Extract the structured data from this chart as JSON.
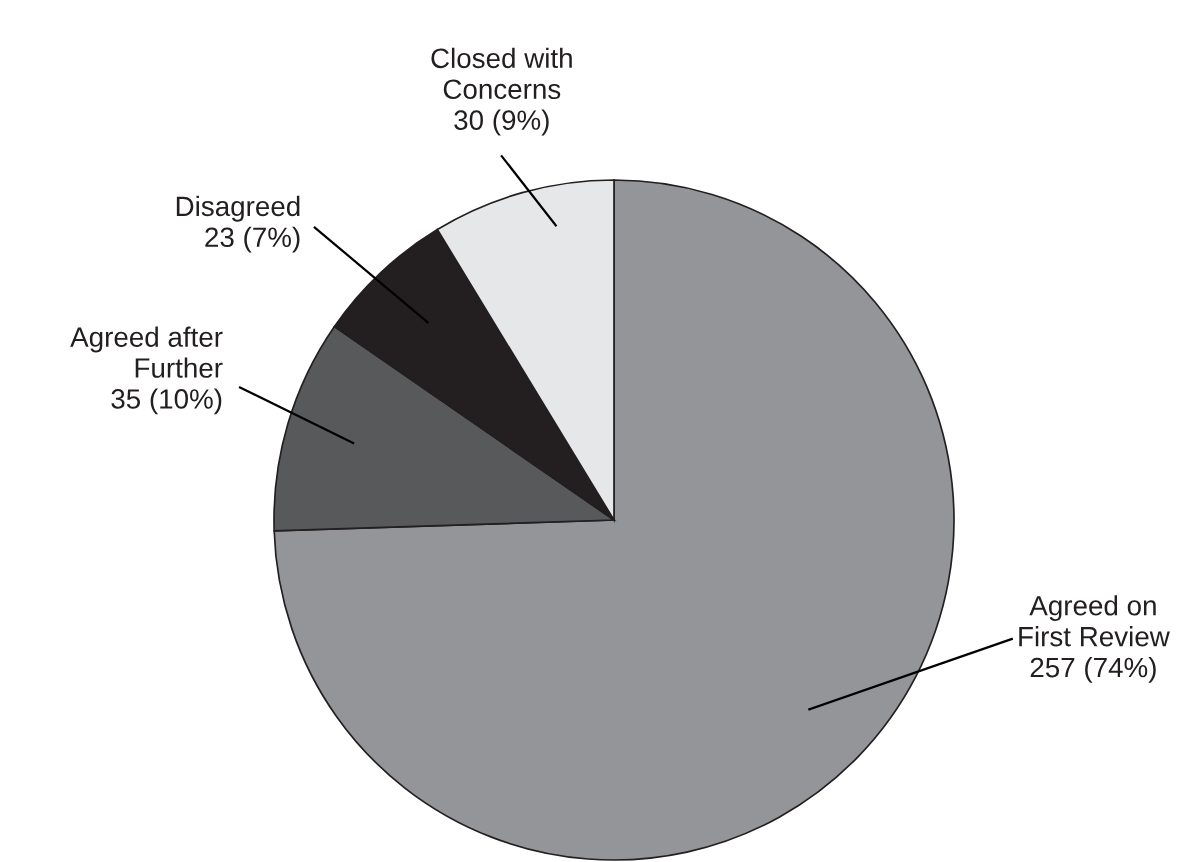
{
  "chart_data": {
    "type": "pie",
    "categories": [
      "Agreed on\nFirst Review",
      "Agreed after\nFurther",
      "Disagreed",
      "Closed with\nConcerns"
    ],
    "values": [
      257,
      35,
      23,
      30
    ],
    "value_labels": [
      "257 (74%)",
      "35 (10%)",
      "23 (7%)",
      "30 (9%)"
    ],
    "colors": [
      "#939598",
      "#58595b",
      "#231f20",
      "#e6e7e8"
    ]
  }
}
